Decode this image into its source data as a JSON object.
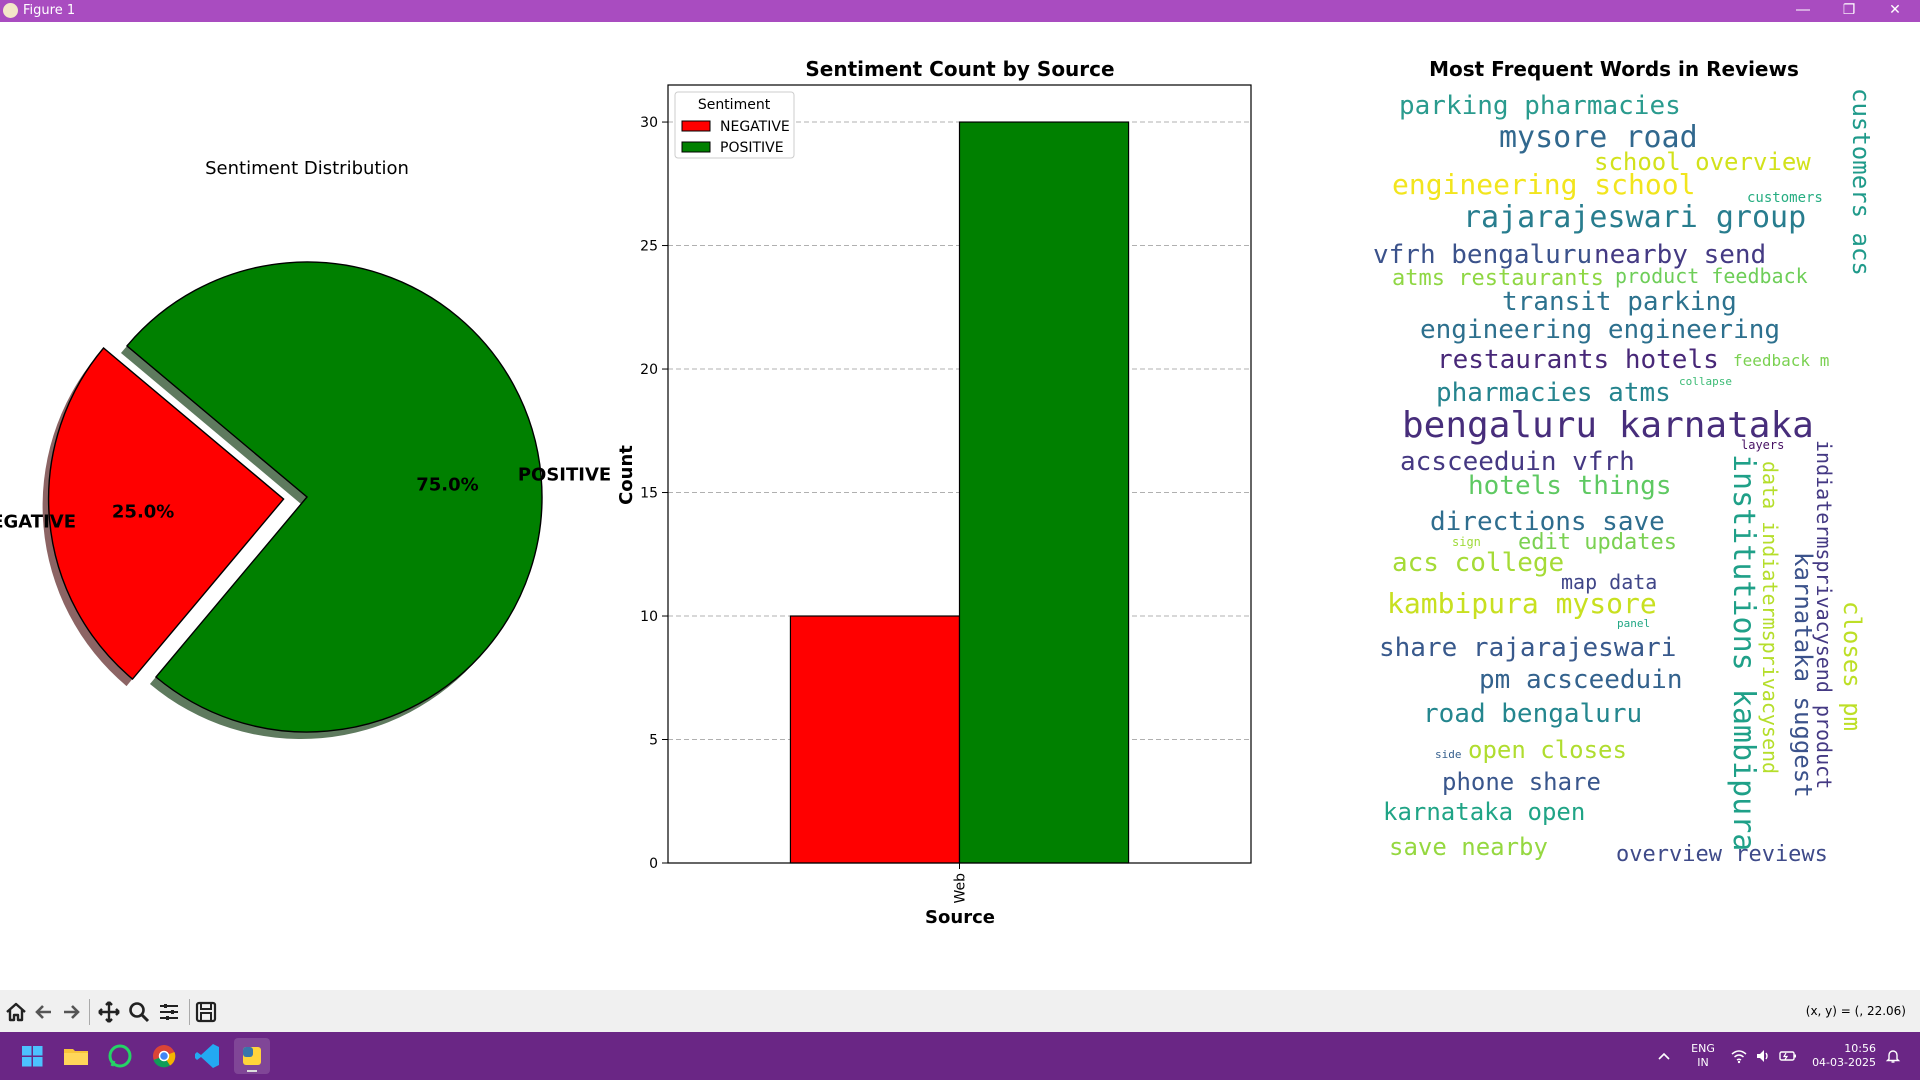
{
  "window": {
    "title": "Figure 1",
    "minimize_icon": "minimize-icon",
    "maximize_icon": "restore-icon",
    "close_icon": "close-icon"
  },
  "toolbar": {
    "buttons": [
      "home-icon",
      "back-icon",
      "forward-icon",
      "pan-icon",
      "zoom-icon",
      "configure-subplots-icon",
      "save-icon"
    ],
    "coords": "(x, y) = (, 22.06)"
  },
  "taskbar": {
    "apps": [
      "windows-start-icon",
      "file-explorer-icon",
      "whatsapp-icon",
      "chrome-icon",
      "vscode-icon",
      "python-figure-icon"
    ],
    "lang_top": "ENG",
    "lang_bottom": "IN",
    "time": "10:56",
    "date": "04-03-2025"
  },
  "chart_data": [
    {
      "type": "pie",
      "title": "Sentiment Distribution",
      "labels": [
        "NEGATIVE",
        "POSITIVE"
      ],
      "values": [
        25.0,
        75.0
      ],
      "percent_labels": [
        "25.0%",
        "75.0%"
      ],
      "colors": [
        "#ff0000",
        "#008000"
      ],
      "explode": [
        0.1,
        0
      ],
      "shadow": true
    },
    {
      "type": "bar",
      "title": "Sentiment Count by Source",
      "xlabel": "Source",
      "ylabel": "Count",
      "categories": [
        "Web"
      ],
      "series": [
        {
          "name": "NEGATIVE",
          "values": [
            10
          ],
          "color": "#ff0000"
        },
        {
          "name": "POSITIVE",
          "values": [
            30
          ],
          "color": "#008000"
        }
      ],
      "ylim": [
        0,
        31.5
      ],
      "yticks": [
        0,
        5,
        10,
        15,
        20,
        25,
        30
      ],
      "legend_title": "Sentiment",
      "legend_position": "top-left",
      "grid": "y-dashed"
    },
    {
      "type": "wordcloud",
      "title": "Most Frequent Words in Reviews",
      "words": [
        {
          "text": "parking pharmacies",
          "color": "#2a9b8e"
        },
        {
          "text": "mysore road",
          "color": "#31688e"
        },
        {
          "text": "school overview",
          "color": "#d2e21b"
        },
        {
          "text": "engineering school",
          "color": "#f2e51d"
        },
        {
          "text": "customers",
          "color": "#26ad81"
        },
        {
          "text": "rajarajeswari group",
          "color": "#287d8e"
        },
        {
          "text": "vfrh bengaluru",
          "color": "#3b528b"
        },
        {
          "text": "nearby send",
          "color": "#443a83"
        },
        {
          "text": "atms restaurants",
          "color": "#8fd744"
        },
        {
          "text": "product feedback",
          "color": "#6ece58"
        },
        {
          "text": "transit parking",
          "color": "#2c728e"
        },
        {
          "text": "engineering engineering",
          "color": "#2d708e"
        },
        {
          "text": "restaurants hotels",
          "color": "#482878"
        },
        {
          "text": "feedback m",
          "color": "#7ad151"
        },
        {
          "text": "collapse",
          "color": "#3cbb75"
        },
        {
          "text": "pharmacies atms",
          "color": "#25848e"
        },
        {
          "text": "bengaluru karnataka",
          "color": "#472d7b"
        },
        {
          "text": "layers",
          "color": "#471063"
        },
        {
          "text": "acsceeduin vfrh",
          "color": "#453882"
        },
        {
          "text": "hotels things",
          "color": "#5ec962"
        },
        {
          "text": "directions save",
          "color": "#2e6d8e"
        },
        {
          "text": "sign",
          "color": "#9fda3a"
        },
        {
          "text": "edit updates",
          "color": "#7ad151"
        },
        {
          "text": "acs college",
          "color": "#a5db36"
        },
        {
          "text": "map data",
          "color": "#404688"
        },
        {
          "text": "kambipura mysore",
          "color": "#c8e020"
        },
        {
          "text": "panel",
          "color": "#22a785"
        },
        {
          "text": "share rajarajeswari",
          "color": "#38598c"
        },
        {
          "text": "pm acsceeduin",
          "color": "#33628d"
        },
        {
          "text": "road bengaluru",
          "color": "#24868e"
        },
        {
          "text": "side",
          "color": "#355f8d"
        },
        {
          "text": "open closes",
          "color": "#b0dd2f"
        },
        {
          "text": "phone share",
          "color": "#39568c"
        },
        {
          "text": "karnataka open",
          "color": "#20a486"
        },
        {
          "text": "save nearby",
          "color": "#95d840"
        },
        {
          "text": "overview reviews",
          "color": "#3e4a89"
        },
        {
          "text": "customers acs",
          "color": "#1f9a8a"
        },
        {
          "text": "institutions kambipura",
          "color": "#1fa088"
        },
        {
          "text": "data indiatermsprivacysend",
          "color": "#b5de2b"
        },
        {
          "text": "karnataka suggest",
          "color": "#3b528b"
        },
        {
          "text": "indiatermsprivacysend product",
          "color": "#443983"
        },
        {
          "text": "closes pm",
          "color": "#bddf26"
        }
      ]
    }
  ]
}
